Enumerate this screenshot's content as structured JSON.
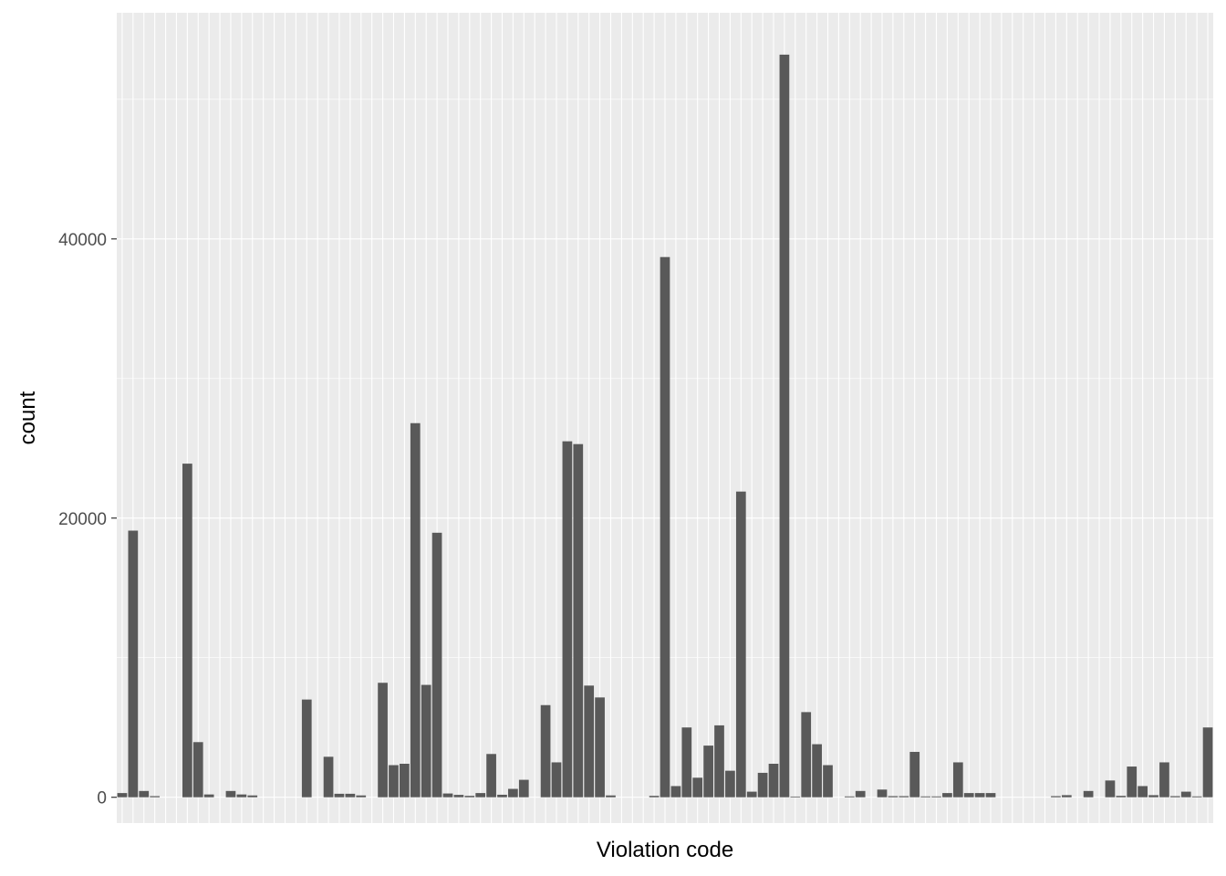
{
  "chart_data": {
    "type": "bar",
    "xlabel": "Violation code",
    "ylabel": "count",
    "ylim": [
      -1850,
      56200
    ],
    "y_ticks": [
      0,
      20000,
      40000
    ],
    "y_tick_labels": [
      "0",
      "20000",
      "40000"
    ],
    "grid": true,
    "colors": {
      "panel": "#ebebeb",
      "grid_major": "#ffffff",
      "bar": "#595959",
      "tick_text": "#4d4d4d",
      "axis_title": "#000000"
    },
    "values": [
      300,
      19100,
      450,
      80,
      0,
      0,
      23900,
      3950,
      200,
      0,
      450,
      200,
      130,
      0,
      0,
      0,
      0,
      7000,
      0,
      2900,
      250,
      250,
      130,
      0,
      8200,
      2300,
      2400,
      26800,
      8050,
      18950,
      270,
      170,
      100,
      300,
      3100,
      180,
      600,
      1250,
      0,
      6600,
      2500,
      25500,
      25300,
      8000,
      7150,
      130,
      0,
      0,
      0,
      100,
      38700,
      800,
      5000,
      1400,
      3700,
      5150,
      1900,
      21900,
      400,
      1750,
      2400,
      53200,
      50,
      6100,
      3800,
      2300,
      0,
      60,
      450,
      0,
      550,
      80,
      80,
      3250,
      60,
      60,
      300,
      2500,
      300,
      300,
      300,
      0,
      0,
      0,
      0,
      0,
      80,
      150,
      0,
      450,
      0,
      1200,
      100,
      2200,
      800,
      150,
      2500,
      80,
      400,
      60,
      5000
    ]
  }
}
